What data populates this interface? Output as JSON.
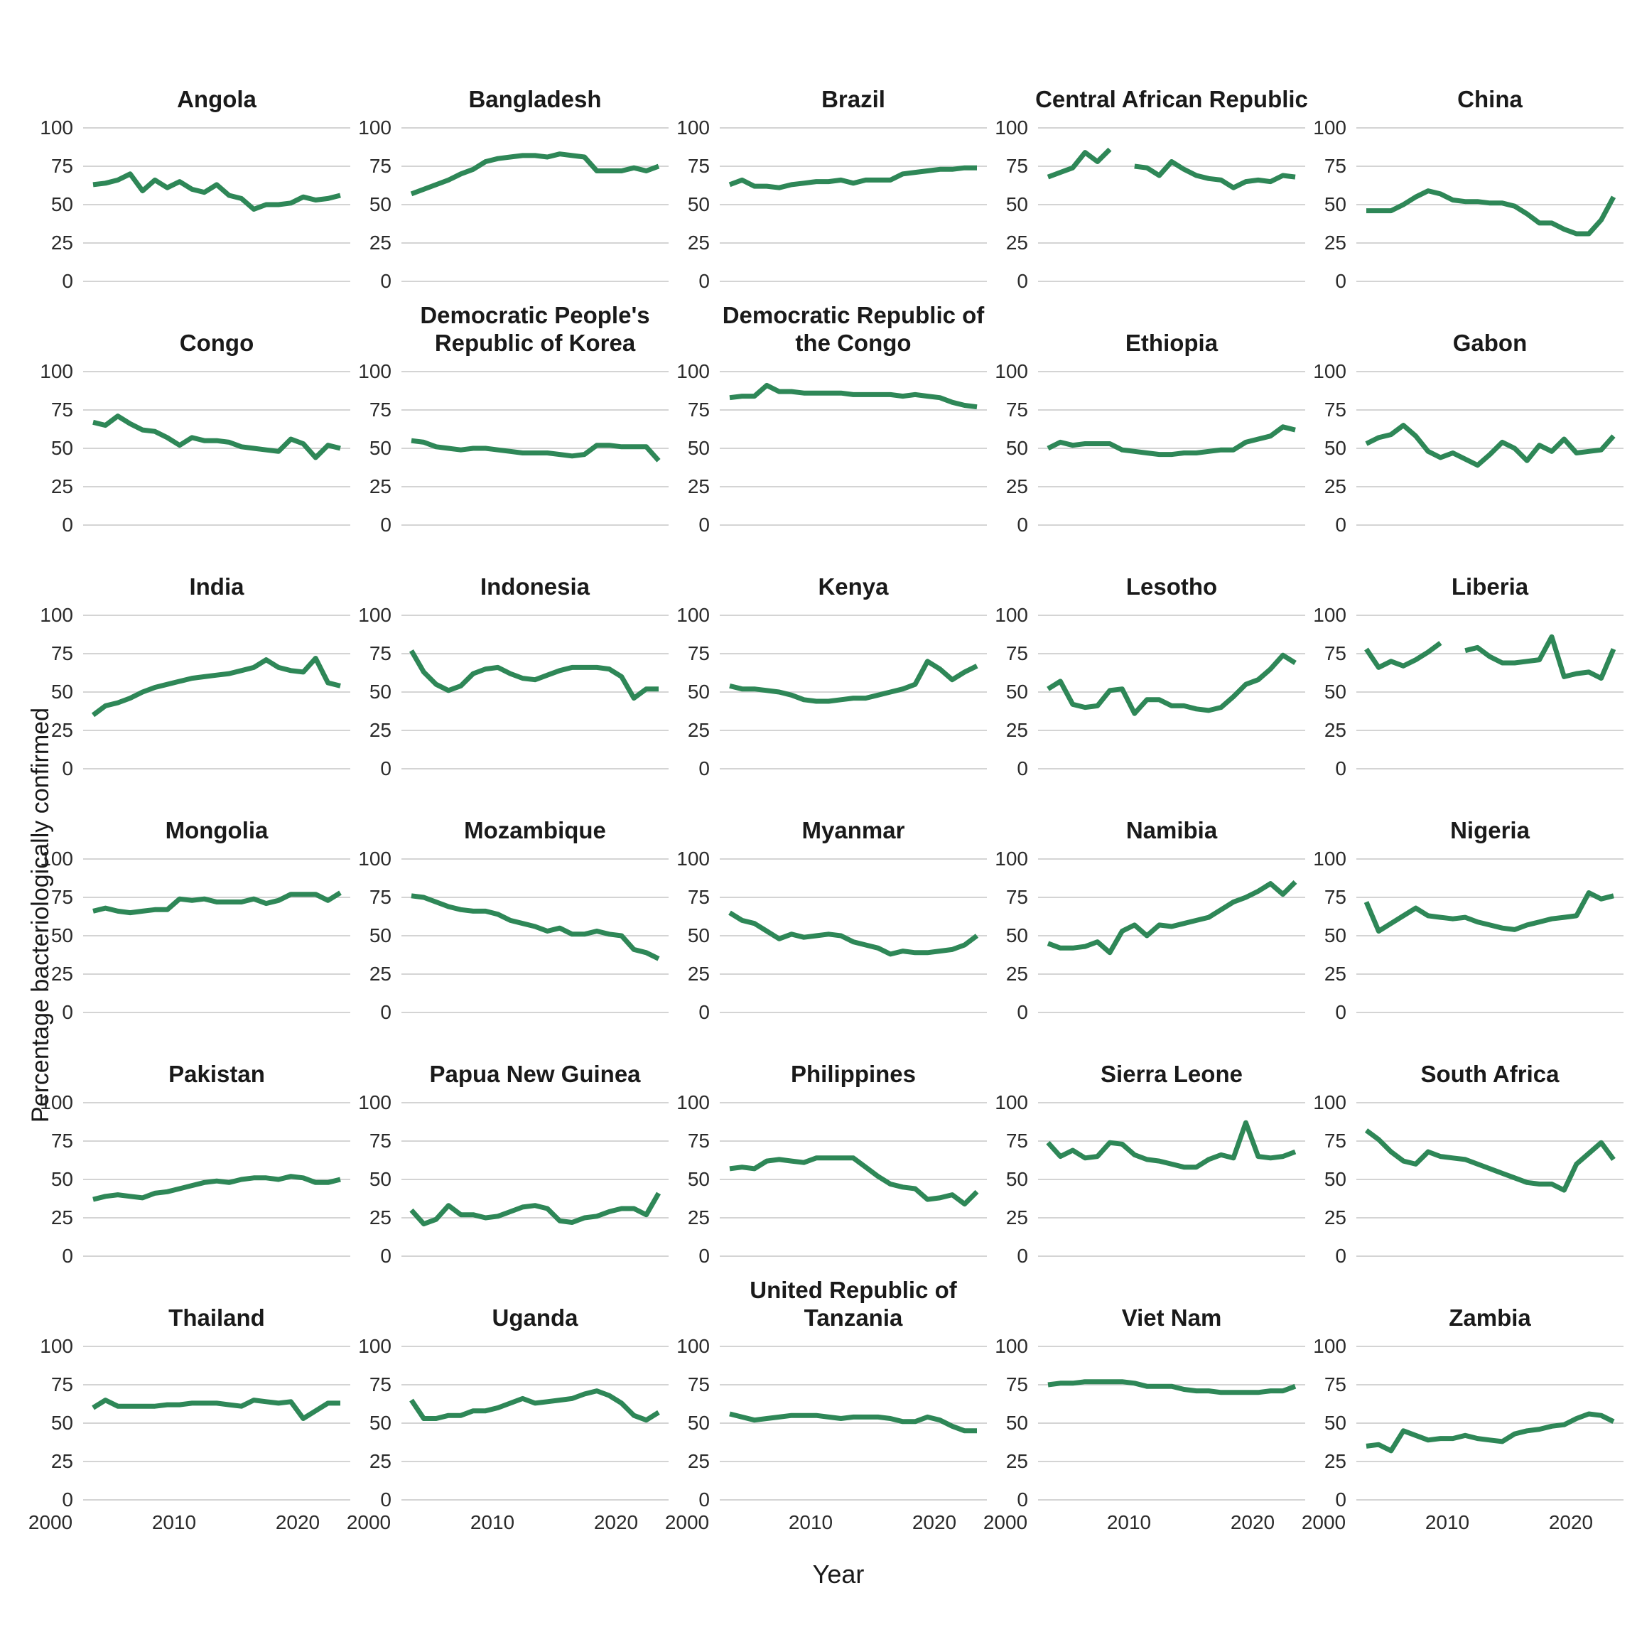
{
  "figure": {
    "xlabel": "Year",
    "ylabel": "Percentage bacteriologically confirmed",
    "line_color": "#2e8757",
    "gridline_color": "#d4d4d4",
    "text_color": "#1a1a1a"
  },
  "chart_data": {
    "type": "line",
    "layout": "facet-grid-6x5",
    "title": "",
    "xlabel": "Year",
    "ylabel": "Percentage bacteriologically confirmed",
    "x": [
      2000,
      2001,
      2002,
      2003,
      2004,
      2005,
      2006,
      2007,
      2008,
      2009,
      2010,
      2011,
      2012,
      2013,
      2014,
      2015,
      2016,
      2017,
      2018,
      2019,
      2020
    ],
    "x_tick_labels": [
      "2000",
      "2010",
      "2020"
    ],
    "x_ticks": [
      2000,
      2010,
      2020
    ],
    "y_ticks": [
      0,
      25,
      50,
      75,
      100
    ],
    "ylim": [
      0,
      100
    ],
    "grid": "horizontal-only",
    "legend_position": "none",
    "series": [
      {
        "name": "Angola",
        "values": [
          63,
          64,
          66,
          70,
          59,
          66,
          61,
          65,
          60,
          58,
          63,
          56,
          54,
          47,
          50,
          50,
          51,
          55,
          53,
          54,
          56
        ]
      },
      {
        "name": "Bangladesh",
        "values": [
          57,
          60,
          63,
          66,
          70,
          73,
          78,
          80,
          81,
          82,
          82,
          81,
          83,
          82,
          81,
          72,
          72,
          72,
          74,
          72,
          75
        ]
      },
      {
        "name": "Brazil",
        "values": [
          63,
          66,
          62,
          62,
          61,
          63,
          64,
          65,
          65,
          66,
          64,
          66,
          66,
          66,
          70,
          71,
          72,
          73,
          73,
          74,
          74
        ]
      },
      {
        "name": "Central African Republic",
        "values": [
          68,
          71,
          74,
          84,
          78,
          86,
          null,
          75,
          74,
          69,
          78,
          73,
          69,
          67,
          66,
          61,
          65,
          66,
          65,
          69,
          68
        ]
      },
      {
        "name": "China",
        "values": [
          46,
          46,
          46,
          50,
          55,
          59,
          57,
          53,
          52,
          52,
          51,
          51,
          49,
          44,
          38,
          38,
          34,
          31,
          31,
          40,
          55
        ]
      },
      {
        "name": "Congo",
        "values": [
          67,
          65,
          71,
          66,
          62,
          61,
          57,
          52,
          57,
          55,
          55,
          54,
          51,
          50,
          49,
          48,
          56,
          53,
          44,
          52,
          50
        ]
      },
      {
        "name": "Democratic People's Republic of Korea",
        "values": [
          55,
          54,
          51,
          50,
          49,
          50,
          50,
          49,
          48,
          47,
          47,
          47,
          46,
          45,
          46,
          52,
          52,
          51,
          51,
          51,
          42
        ]
      },
      {
        "name": "Democratic Republic of the Congo",
        "values": [
          83,
          84,
          84,
          91,
          87,
          87,
          86,
          86,
          86,
          86,
          85,
          85,
          85,
          85,
          84,
          85,
          84,
          83,
          80,
          78,
          77
        ]
      },
      {
        "name": "Ethiopia",
        "values": [
          50,
          54,
          52,
          53,
          53,
          53,
          49,
          48,
          47,
          46,
          46,
          47,
          47,
          48,
          49,
          49,
          54,
          56,
          58,
          64,
          62
        ]
      },
      {
        "name": "Gabon",
        "values": [
          53,
          57,
          59,
          65,
          58,
          48,
          44,
          47,
          43,
          39,
          46,
          54,
          50,
          42,
          52,
          48,
          56,
          47,
          48,
          49,
          58
        ]
      },
      {
        "name": "India",
        "values": [
          35,
          41,
          43,
          46,
          50,
          53,
          55,
          57,
          59,
          60,
          61,
          62,
          64,
          66,
          71,
          66,
          64,
          63,
          72,
          56,
          54
        ]
      },
      {
        "name": "Indonesia",
        "values": [
          77,
          63,
          55,
          51,
          54,
          62,
          65,
          66,
          62,
          59,
          58,
          61,
          64,
          66,
          66,
          66,
          65,
          60,
          46,
          52,
          52
        ]
      },
      {
        "name": "Kenya",
        "values": [
          54,
          52,
          52,
          51,
          50,
          48,
          45,
          44,
          44,
          45,
          46,
          46,
          48,
          50,
          52,
          55,
          70,
          65,
          58,
          63,
          67
        ]
      },
      {
        "name": "Lesotho",
        "values": [
          52,
          57,
          42,
          40,
          41,
          51,
          52,
          36,
          45,
          45,
          41,
          41,
          39,
          38,
          40,
          47,
          55,
          58,
          65,
          74,
          69
        ]
      },
      {
        "name": "Liberia",
        "values": [
          78,
          66,
          70,
          67,
          71,
          76,
          82,
          null,
          77,
          79,
          73,
          69,
          69,
          70,
          71,
          86,
          60,
          62,
          63,
          59,
          78
        ]
      },
      {
        "name": "Mongolia",
        "values": [
          66,
          68,
          66,
          65,
          66,
          67,
          67,
          74,
          73,
          74,
          72,
          72,
          72,
          74,
          71,
          73,
          77,
          77,
          77,
          73,
          78
        ]
      },
      {
        "name": "Mozambique",
        "values": [
          76,
          75,
          72,
          69,
          67,
          66,
          66,
          64,
          60,
          58,
          56,
          53,
          55,
          51,
          51,
          53,
          51,
          50,
          41,
          39,
          35
        ]
      },
      {
        "name": "Myanmar",
        "values": [
          65,
          60,
          58,
          53,
          48,
          51,
          49,
          50,
          51,
          50,
          46,
          44,
          42,
          38,
          40,
          39,
          39,
          40,
          41,
          44,
          50
        ]
      },
      {
        "name": "Namibia",
        "values": [
          45,
          42,
          42,
          43,
          46,
          39,
          53,
          57,
          50,
          57,
          56,
          58,
          60,
          62,
          67,
          72,
          75,
          79,
          84,
          77,
          85
        ]
      },
      {
        "name": "Nigeria",
        "values": [
          72,
          53,
          58,
          63,
          68,
          63,
          62,
          61,
          62,
          59,
          57,
          55,
          54,
          57,
          59,
          61,
          62,
          63,
          78,
          74,
          76
        ]
      },
      {
        "name": "Pakistan",
        "values": [
          37,
          39,
          40,
          39,
          38,
          41,
          42,
          44,
          46,
          48,
          49,
          48,
          50,
          51,
          51,
          50,
          52,
          51,
          48,
          48,
          50
        ]
      },
      {
        "name": "Papua New Guinea",
        "values": [
          30,
          21,
          24,
          33,
          27,
          27,
          25,
          26,
          29,
          32,
          33,
          31,
          23,
          22,
          25,
          26,
          29,
          31,
          31,
          27,
          41
        ]
      },
      {
        "name": "Philippines",
        "values": [
          57,
          58,
          57,
          62,
          63,
          62,
          61,
          64,
          64,
          64,
          64,
          58,
          52,
          47,
          45,
          44,
          37,
          38,
          40,
          34,
          42
        ]
      },
      {
        "name": "Sierra Leone",
        "values": [
          74,
          65,
          69,
          64,
          65,
          74,
          73,
          66,
          63,
          62,
          60,
          58,
          58,
          63,
          66,
          64,
          87,
          65,
          64,
          65,
          68
        ]
      },
      {
        "name": "South Africa",
        "values": [
          82,
          76,
          68,
          62,
          60,
          68,
          65,
          64,
          63,
          60,
          57,
          54,
          51,
          48,
          47,
          47,
          43,
          60,
          67,
          74,
          63
        ]
      },
      {
        "name": "Thailand",
        "values": [
          60,
          65,
          61,
          61,
          61,
          61,
          62,
          62,
          63,
          63,
          63,
          62,
          61,
          65,
          64,
          63,
          64,
          53,
          58,
          63,
          63
        ]
      },
      {
        "name": "Uganda",
        "values": [
          65,
          53,
          53,
          55,
          55,
          58,
          58,
          60,
          63,
          66,
          63,
          64,
          65,
          66,
          69,
          71,
          68,
          63,
          55,
          52,
          57
        ]
      },
      {
        "name": "United Republic of Tanzania",
        "values": [
          56,
          54,
          52,
          53,
          54,
          55,
          55,
          55,
          54,
          53,
          54,
          54,
          54,
          53,
          51,
          51,
          54,
          52,
          48,
          45,
          45
        ]
      },
      {
        "name": "Viet Nam",
        "values": [
          75,
          76,
          76,
          77,
          77,
          77,
          77,
          76,
          74,
          74,
          74,
          72,
          71,
          71,
          70,
          70,
          70,
          70,
          71,
          71,
          74
        ]
      },
      {
        "name": "Zambia",
        "values": [
          35,
          36,
          32,
          45,
          42,
          39,
          40,
          40,
          42,
          40,
          39,
          38,
          43,
          45,
          46,
          48,
          49,
          53,
          56,
          55,
          51
        ]
      }
    ]
  }
}
